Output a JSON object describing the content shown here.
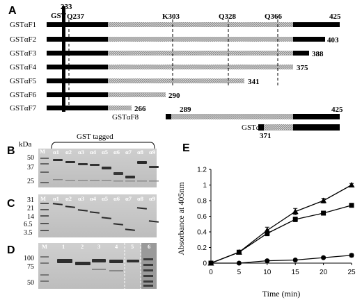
{
  "panels": {
    "a": "A",
    "b": "B",
    "c": "C",
    "d": "D",
    "e": "E"
  },
  "panel_a": {
    "residues_top": {
      "r233": "233",
      "gst": "GST",
      "q237": "Q237",
      "k303": "K303",
      "q328": "Q328",
      "q366": "Q366",
      "r425": "425"
    },
    "constructs": [
      {
        "name": "GSTαF1",
        "end": "425"
      },
      {
        "name": "GSTαF2",
        "end": "403"
      },
      {
        "name": "GSTαF3",
        "end": "388"
      },
      {
        "name": "GSTαF4",
        "end": "375"
      },
      {
        "name": "GSTαF5",
        "end": "341"
      },
      {
        "name": "GSTαF6",
        "end": "290"
      },
      {
        "name": "GSTαF7",
        "end": "266"
      }
    ],
    "f8": {
      "name": "GSTαF8",
      "start": "289",
      "end": "425"
    },
    "f9": {
      "name": "GSTαF9",
      "start": "371"
    }
  },
  "panel_b": {
    "ylabel": "kDa",
    "group_label": "GST tagged",
    "marker": "M",
    "lanes": [
      "α1",
      "α2",
      "α3",
      "α4",
      "α5",
      "α6",
      "α7",
      "α8",
      "α9"
    ],
    "mw": [
      "50",
      "37",
      "25"
    ]
  },
  "panel_c": {
    "marker": "M",
    "lanes": [
      "α1",
      "α2",
      "α3",
      "α4",
      "α5",
      "α6",
      "α7",
      "α8",
      "α9"
    ],
    "mw": [
      "31",
      "21",
      "14",
      "6.5",
      "3.5"
    ]
  },
  "panel_d": {
    "marker": "M",
    "lanes": [
      "1",
      "2",
      "3",
      "4",
      "5",
      "6"
    ],
    "mw": [
      "100",
      "75",
      "50"
    ]
  },
  "chart_data": {
    "type": "line",
    "xlabel": "Time (min)",
    "ylabel": "Absorbance at 405nm",
    "x": [
      0,
      5,
      10,
      15,
      20,
      25
    ],
    "xlim": [
      0,
      25
    ],
    "ylim": [
      0,
      1.2
    ],
    "xticks": [
      "0",
      "5",
      "10",
      "15",
      "20",
      "25"
    ],
    "yticks": [
      "0",
      "0.2",
      "0.4",
      "0.6",
      "0.8",
      "1",
      "1.2"
    ],
    "series": [
      {
        "marker": "triangle",
        "values": [
          0,
          0.14,
          0.42,
          0.66,
          0.8,
          1.0
        ],
        "errors": [
          0,
          0.02,
          0.04,
          0.04,
          0.03,
          0.02
        ]
      },
      {
        "marker": "square",
        "values": [
          0,
          0.14,
          0.38,
          0.56,
          0.64,
          0.74
        ],
        "errors": [
          0,
          0.02,
          0.03,
          0.03,
          0.02,
          0.02
        ]
      },
      {
        "marker": "circle",
        "values": [
          0,
          0,
          0.03,
          0.04,
          0.07,
          0.1
        ],
        "errors": [
          0,
          0,
          0.01,
          0.01,
          0.01,
          0.02
        ]
      }
    ]
  }
}
